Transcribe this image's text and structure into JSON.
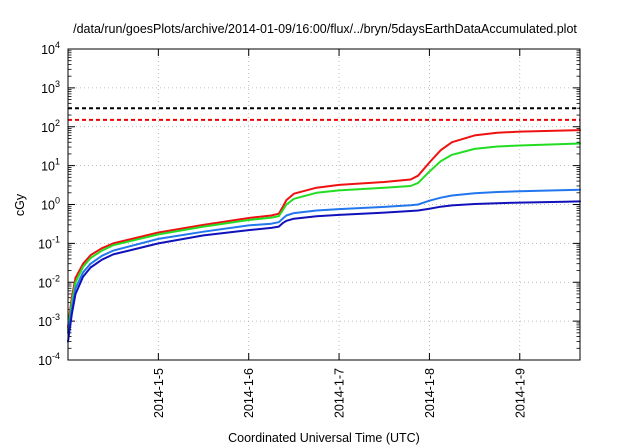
{
  "chart_data": {
    "type": "line",
    "title": "/data/run/goesPlots/archive/2014-01-09/16:00/flux/../bryn/5daysEarthDataAccumulated.plot",
    "xlabel": "Coordinated Universal Time (UTC)",
    "ylabel": "cGy",
    "yscale": "log",
    "ylim": [
      0.0001,
      10000
    ],
    "xlim": [
      "2014-01-04 00:00",
      "2014-01-09 16:00"
    ],
    "grid": true,
    "legend": "none",
    "x_ticks": [
      {
        "date": "2014-01-05",
        "label": "2014-1-5"
      },
      {
        "date": "2014-01-06",
        "label": "2014-1-6"
      },
      {
        "date": "2014-01-07",
        "label": "2014-1-7"
      },
      {
        "date": "2014-01-08",
        "label": "2014-1-8"
      },
      {
        "date": "2014-01-09",
        "label": "2014-1-9"
      }
    ],
    "y_ticks": [
      {
        "value": 0.0001,
        "base": "10",
        "exp": "-4"
      },
      {
        "value": 0.001,
        "base": "10",
        "exp": "-3"
      },
      {
        "value": 0.01,
        "base": "10",
        "exp": "-2"
      },
      {
        "value": 0.1,
        "base": "10",
        "exp": "-1"
      },
      {
        "value": 1,
        "base": "10",
        "exp": "0"
      },
      {
        "value": 10,
        "base": "10",
        "exp": "1"
      },
      {
        "value": 100,
        "base": "10",
        "exp": "2"
      },
      {
        "value": 1000,
        "base": "10",
        "exp": "3"
      },
      {
        "value": 10000,
        "base": "10",
        "exp": "4"
      }
    ],
    "thresholds": [
      {
        "color": "#000000",
        "value": 300
      },
      {
        "color": "#ee0000",
        "value": 150
      }
    ],
    "series": [
      {
        "color": "#ee1111",
        "points": [
          [
            "2014-01-04 00:00",
            0.0007
          ],
          [
            "2014-01-04 01:00",
            0.004
          ],
          [
            "2014-01-04 02:00",
            0.013
          ],
          [
            "2014-01-04 04:00",
            0.03
          ],
          [
            "2014-01-04 06:00",
            0.05
          ],
          [
            "2014-01-04 09:00",
            0.075
          ],
          [
            "2014-01-04 12:00",
            0.1
          ],
          [
            "2014-01-05 00:00",
            0.19
          ],
          [
            "2014-01-05 12:00",
            0.3
          ],
          [
            "2014-01-06 00:00",
            0.45
          ],
          [
            "2014-01-06 06:00",
            0.52
          ],
          [
            "2014-01-06 08:00",
            0.58
          ],
          [
            "2014-01-06 09:00",
            0.85
          ],
          [
            "2014-01-06 10:00",
            1.3
          ],
          [
            "2014-01-06 12:00",
            1.9
          ],
          [
            "2014-01-06 18:00",
            2.7
          ],
          [
            "2014-01-07 00:00",
            3.2
          ],
          [
            "2014-01-07 12:00",
            3.8
          ],
          [
            "2014-01-07 19:00",
            4.4
          ],
          [
            "2014-01-07 21:00",
            5.5
          ],
          [
            "2014-01-08 00:00",
            12
          ],
          [
            "2014-01-08 03:00",
            25
          ],
          [
            "2014-01-08 06:00",
            40
          ],
          [
            "2014-01-08 12:00",
            60
          ],
          [
            "2014-01-08 18:00",
            70
          ],
          [
            "2014-01-09 00:00",
            75
          ],
          [
            "2014-01-09 12:00",
            80
          ],
          [
            "2014-01-09 16:00",
            82
          ]
        ]
      },
      {
        "color": "#22dd22",
        "points": [
          [
            "2014-01-04 00:00",
            0.0006
          ],
          [
            "2014-01-04 01:00",
            0.003
          ],
          [
            "2014-01-04 02:00",
            0.01
          ],
          [
            "2014-01-04 04:00",
            0.025
          ],
          [
            "2014-01-04 06:00",
            0.042
          ],
          [
            "2014-01-04 09:00",
            0.065
          ],
          [
            "2014-01-04 12:00",
            0.09
          ],
          [
            "2014-01-05 00:00",
            0.17
          ],
          [
            "2014-01-05 12:00",
            0.27
          ],
          [
            "2014-01-06 00:00",
            0.4
          ],
          [
            "2014-01-06 06:00",
            0.46
          ],
          [
            "2014-01-06 08:00",
            0.5
          ],
          [
            "2014-01-06 09:00",
            0.7
          ],
          [
            "2014-01-06 10:00",
            1.0
          ],
          [
            "2014-01-06 12:00",
            1.4
          ],
          [
            "2014-01-06 18:00",
            2.0
          ],
          [
            "2014-01-07 00:00",
            2.3
          ],
          [
            "2014-01-07 12:00",
            2.7
          ],
          [
            "2014-01-07 19:00",
            3.0
          ],
          [
            "2014-01-07 21:00",
            3.6
          ],
          [
            "2014-01-08 00:00",
            7
          ],
          [
            "2014-01-08 03:00",
            13
          ],
          [
            "2014-01-08 06:00",
            19
          ],
          [
            "2014-01-08 12:00",
            27
          ],
          [
            "2014-01-08 18:00",
            31
          ],
          [
            "2014-01-09 00:00",
            33
          ],
          [
            "2014-01-09 12:00",
            36
          ],
          [
            "2014-01-09 16:00",
            37
          ]
        ]
      },
      {
        "color": "#2277ee",
        "points": [
          [
            "2014-01-04 00:00",
            0.0005
          ],
          [
            "2014-01-04 01:00",
            0.002
          ],
          [
            "2014-01-04 02:00",
            0.007
          ],
          [
            "2014-01-04 04:00",
            0.018
          ],
          [
            "2014-01-04 06:00",
            0.03
          ],
          [
            "2014-01-04 09:00",
            0.048
          ],
          [
            "2014-01-04 12:00",
            0.065
          ],
          [
            "2014-01-05 00:00",
            0.13
          ],
          [
            "2014-01-05 12:00",
            0.2
          ],
          [
            "2014-01-06 00:00",
            0.29
          ],
          [
            "2014-01-06 06:00",
            0.32
          ],
          [
            "2014-01-06 08:00",
            0.35
          ],
          [
            "2014-01-06 09:00",
            0.43
          ],
          [
            "2014-01-06 10:00",
            0.52
          ],
          [
            "2014-01-06 12:00",
            0.6
          ],
          [
            "2014-01-06 18:00",
            0.7
          ],
          [
            "2014-01-07 00:00",
            0.76
          ],
          [
            "2014-01-07 12:00",
            0.87
          ],
          [
            "2014-01-07 19:00",
            0.96
          ],
          [
            "2014-01-07 21:00",
            1.0
          ],
          [
            "2014-01-08 00:00",
            1.25
          ],
          [
            "2014-01-08 03:00",
            1.5
          ],
          [
            "2014-01-08 06:00",
            1.7
          ],
          [
            "2014-01-08 12:00",
            1.95
          ],
          [
            "2014-01-08 18:00",
            2.1
          ],
          [
            "2014-01-09 00:00",
            2.2
          ],
          [
            "2014-01-09 12:00",
            2.35
          ],
          [
            "2014-01-09 16:00",
            2.4
          ]
        ]
      },
      {
        "color": "#1111bb",
        "points": [
          [
            "2014-01-04 00:00",
            0.0003
          ],
          [
            "2014-01-04 01:00",
            0.0015
          ],
          [
            "2014-01-04 02:00",
            0.005
          ],
          [
            "2014-01-04 04:00",
            0.014
          ],
          [
            "2014-01-04 06:00",
            0.024
          ],
          [
            "2014-01-04 09:00",
            0.038
          ],
          [
            "2014-01-04 12:00",
            0.052
          ],
          [
            "2014-01-05 00:00",
            0.1
          ],
          [
            "2014-01-05 12:00",
            0.16
          ],
          [
            "2014-01-06 00:00",
            0.22
          ],
          [
            "2014-01-06 06:00",
            0.25
          ],
          [
            "2014-01-06 08:00",
            0.27
          ],
          [
            "2014-01-06 09:00",
            0.33
          ],
          [
            "2014-01-06 10:00",
            0.38
          ],
          [
            "2014-01-06 12:00",
            0.43
          ],
          [
            "2014-01-06 18:00",
            0.5
          ],
          [
            "2014-01-07 00:00",
            0.54
          ],
          [
            "2014-01-07 12:00",
            0.62
          ],
          [
            "2014-01-07 19:00",
            0.68
          ],
          [
            "2014-01-07 21:00",
            0.7
          ],
          [
            "2014-01-08 00:00",
            0.78
          ],
          [
            "2014-01-08 03:00",
            0.88
          ],
          [
            "2014-01-08 06:00",
            0.95
          ],
          [
            "2014-01-08 12:00",
            1.03
          ],
          [
            "2014-01-08 18:00",
            1.08
          ],
          [
            "2014-01-09 00:00",
            1.12
          ],
          [
            "2014-01-09 12:00",
            1.18
          ],
          [
            "2014-01-09 16:00",
            1.2
          ]
        ]
      }
    ]
  }
}
